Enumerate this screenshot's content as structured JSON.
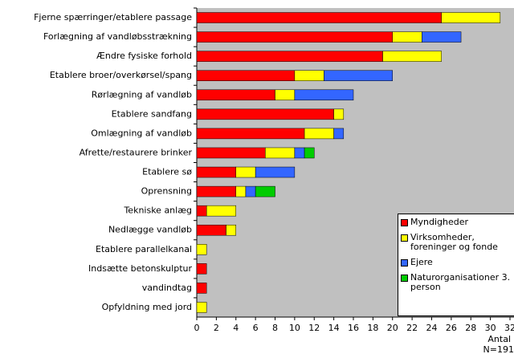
{
  "chart_data": {
    "type": "stacked_barh",
    "categories": [
      "Fjerne spærringer/etablere passage",
      "Forlægning af vandløbsstrækning",
      "Ændre fysiske forhold",
      "Etablere broer/overkørsel/spang",
      "Rørlægning af vandløb",
      "Etablere sandfang",
      "Omlægning af vandløb",
      "Afrette/restaurere brinker",
      "Etablere sø",
      "Oprensning",
      "Tekniske anlæg",
      "Nedlægge vandløb",
      "Etablere parallelkanal",
      "Indsætte betonskulptur",
      "vandindtag",
      "Opfyldning med jord"
    ],
    "series": [
      {
        "name": "Myndigheder",
        "color": "#ff0000",
        "values": [
          25,
          20,
          19,
          10,
          8,
          14,
          11,
          7,
          4,
          4,
          1,
          3,
          0,
          1,
          1,
          0
        ]
      },
      {
        "name": "Virksomheder, foreninger og fonde",
        "color": "#ffff00",
        "values": [
          6,
          3,
          6,
          3,
          2,
          1,
          3,
          3,
          2,
          1,
          3,
          1,
          1,
          0,
          0,
          1
        ]
      },
      {
        "name": "Ejere",
        "color": "#3366ff",
        "values": [
          0,
          4,
          0,
          7,
          6,
          0,
          1,
          1,
          4,
          1,
          0,
          0,
          0,
          0,
          0,
          0
        ]
      },
      {
        "name": "Naturorganisationer 3. person",
        "color": "#00cc00",
        "values": [
          0,
          0,
          0,
          0,
          0,
          0,
          0,
          1,
          0,
          2,
          0,
          0,
          0,
          0,
          0,
          0
        ]
      }
    ],
    "xlim": [
      0,
      32
    ],
    "xticks": [
      0,
      2,
      4,
      6,
      8,
      10,
      12,
      14,
      16,
      18,
      20,
      22,
      24,
      26,
      28,
      30,
      32
    ],
    "x_label": "Antal",
    "note": "N=191",
    "legend": "lower right"
  }
}
